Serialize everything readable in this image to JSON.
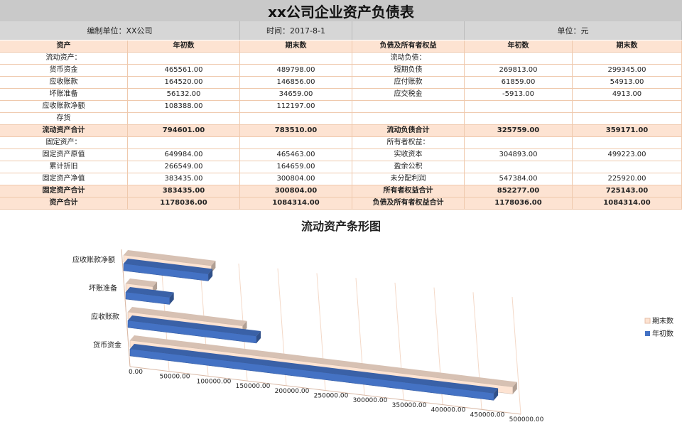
{
  "sheet": {
    "title": "xx公司企业资产负债表",
    "info": {
      "unit_label": "编制单位：XX公司",
      "date_label": "时间：2017-8-1",
      "currency_label": "单位：元"
    },
    "headers": [
      "资产",
      "年初数",
      "期末数",
      "负债及所有者权益",
      "年初数",
      "期末数"
    ],
    "rows": [
      {
        "type": "normal",
        "cells": [
          "流动资产：",
          "",
          "",
          "流动负债：",
          "",
          ""
        ]
      },
      {
        "type": "normal",
        "cells": [
          "货币资金",
          "465561.00",
          "489798.00",
          "短期负债",
          "269813.00",
          "299345.00"
        ]
      },
      {
        "type": "normal",
        "cells": [
          "应收账款",
          "164520.00",
          "146856.00",
          "应付账款",
          "61859.00",
          "54913.00"
        ]
      },
      {
        "type": "normal",
        "cells": [
          "坏账准备",
          "56132.00",
          "34659.00",
          "应交税金",
          "-5913.00",
          "4913.00"
        ]
      },
      {
        "type": "normal",
        "cells": [
          "应收账款净额",
          "108388.00",
          "112197.00",
          "",
          "",
          ""
        ]
      },
      {
        "type": "normal",
        "cells": [
          "存货",
          "",
          "",
          "",
          "",
          ""
        ]
      },
      {
        "type": "total",
        "cells": [
          "流动资产合计",
          "794601.00",
          "783510.00",
          "流动负债合计",
          "325759.00",
          "359171.00"
        ]
      },
      {
        "type": "normal",
        "cells": [
          "固定资产：",
          "",
          "",
          "所有者权益：",
          "",
          ""
        ]
      },
      {
        "type": "normal",
        "cells": [
          "固定资产原值",
          "649984.00",
          "465463.00",
          "实收资本",
          "304893.00",
          "499223.00"
        ]
      },
      {
        "type": "normal",
        "cells": [
          "累计折旧",
          "266549.00",
          "164659.00",
          "盈余公积",
          "",
          ""
        ]
      },
      {
        "type": "normal",
        "cells": [
          "固定资产净值",
          "383435.00",
          "300804.00",
          "未分配利润",
          "547384.00",
          "225920.00"
        ]
      },
      {
        "type": "total",
        "cells": [
          "固定资产合计",
          "383435.00",
          "300804.00",
          "所有者权益合计",
          "852277.00",
          "725143.00"
        ]
      },
      {
        "type": "total",
        "cells": [
          "资产合计",
          "1178036.00",
          "1084314.00",
          "负债及所有者权益合计",
          "1178036.00",
          "1084314.00"
        ]
      }
    ]
  },
  "chart_data": {
    "type": "bar",
    "orientation": "horizontal",
    "title": "流动资产条形图",
    "categories": [
      "货币资金",
      "应收账款",
      "坏账准备",
      "应收账款净额"
    ],
    "series": [
      {
        "name": "期末数",
        "values": [
          489798,
          146856,
          34659,
          112197
        ],
        "color": "#fde3d2"
      },
      {
        "name": "年初数",
        "values": [
          465561,
          164520,
          56132,
          108388
        ],
        "color": "#4472c4"
      }
    ],
    "x_ticks": [
      "0.00",
      "50000.00",
      "100000.00",
      "150000.00",
      "200000.00",
      "250000.00",
      "300000.00",
      "350000.00",
      "400000.00",
      "450000.00",
      "500000.00"
    ],
    "xlim": [
      0,
      500000
    ],
    "legend": "right",
    "grid": true
  }
}
